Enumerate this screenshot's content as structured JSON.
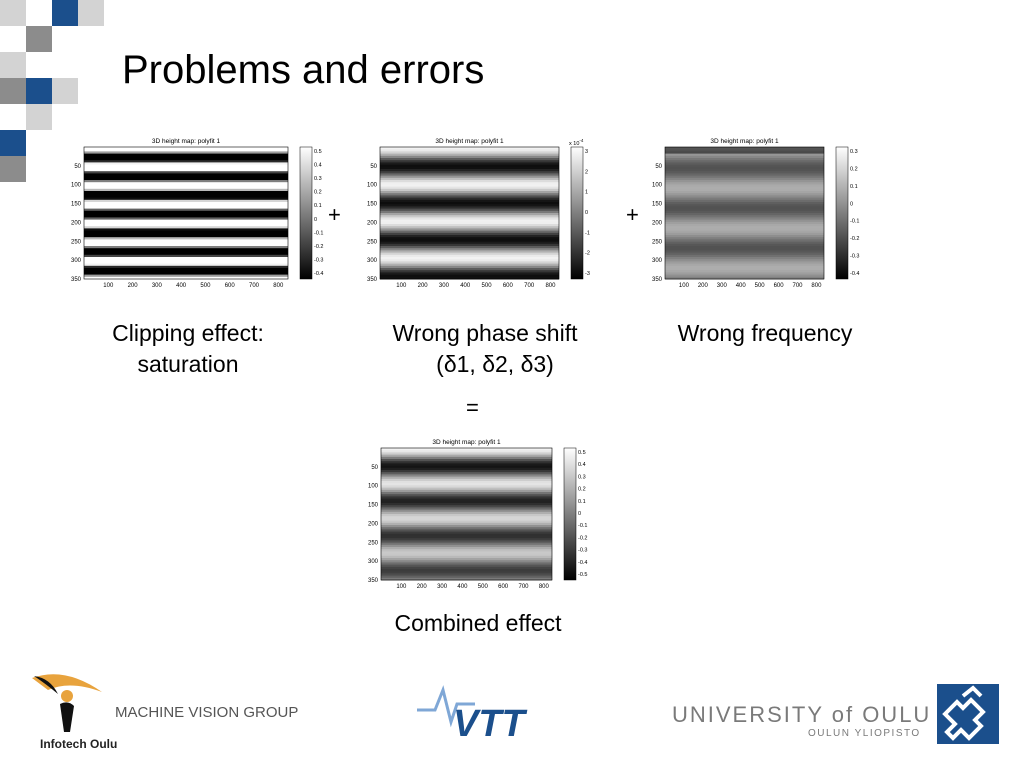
{
  "slide": {
    "title": "Problems and errors",
    "plus_sign": "+",
    "equals_sign": "="
  },
  "plots": [
    {
      "name": "clipping",
      "title": "3D height map: polyfit 1",
      "y_ticks": [
        "50",
        "100",
        "150",
        "200",
        "250",
        "300",
        "350"
      ],
      "x_ticks": [
        "100",
        "200",
        "300",
        "400",
        "500",
        "600",
        "700",
        "800"
      ],
      "colorbar_ticks": [
        "0.5",
        "0.4",
        "0.3",
        "0.2",
        "0.1",
        "0",
        "-0.1",
        "-0.2",
        "-0.3",
        "-0.4"
      ],
      "colorbar_exponent": "",
      "caption_lines": [
        "Clipping effect:",
        "saturation"
      ]
    },
    {
      "name": "phase-shift",
      "title": "3D height map: polyfit 1",
      "y_ticks": [
        "50",
        "100",
        "150",
        "200",
        "250",
        "300",
        "350"
      ],
      "x_ticks": [
        "100",
        "200",
        "300",
        "400",
        "500",
        "600",
        "700",
        "800"
      ],
      "colorbar_ticks": [
        "3",
        "2",
        "1",
        "0",
        "-1",
        "-2",
        "-3"
      ],
      "colorbar_exponent": "x 10",
      "colorbar_exponent_power": "-4",
      "caption_lines": [
        "Wrong phase shift",
        "(δ1, δ2, δ3)"
      ]
    },
    {
      "name": "frequency",
      "title": "3D height map: polyfit 1",
      "y_ticks": [
        "50",
        "100",
        "150",
        "200",
        "250",
        "300",
        "350"
      ],
      "x_ticks": [
        "100",
        "200",
        "300",
        "400",
        "500",
        "600",
        "700",
        "800"
      ],
      "colorbar_ticks": [
        "0.3",
        "0.2",
        "0.1",
        "0",
        "-0.1",
        "-0.2",
        "-0.3",
        "-0.4"
      ],
      "colorbar_exponent": "",
      "caption_lines": [
        "Wrong frequency"
      ]
    },
    {
      "name": "combined",
      "title": "3D height map: polyfit 1",
      "y_ticks": [
        "50",
        "100",
        "150",
        "200",
        "250",
        "300",
        "350"
      ],
      "x_ticks": [
        "100",
        "200",
        "300",
        "400",
        "500",
        "600",
        "700",
        "800"
      ],
      "colorbar_ticks": [
        "0.5",
        "0.4",
        "0.3",
        "0.2",
        "0.1",
        "0",
        "-0.1",
        "-0.2",
        "-0.3",
        "-0.4",
        "-0.5"
      ],
      "colorbar_exponent": "",
      "caption_lines": [
        "Combined effect"
      ]
    }
  ],
  "footer": {
    "group": "MACHINE VISION GROUP",
    "infotech": "Infotech Oulu",
    "vtt": "VTT",
    "university": "UNIVERSITY of OULU",
    "university_sub": "OULUN YLIOPISTO"
  },
  "colors": {
    "brand_blue": "#1b4f8c",
    "mid_gray": "#8c8c8c",
    "light_gray": "#d3d3d3",
    "orange": "#e8a33d"
  }
}
